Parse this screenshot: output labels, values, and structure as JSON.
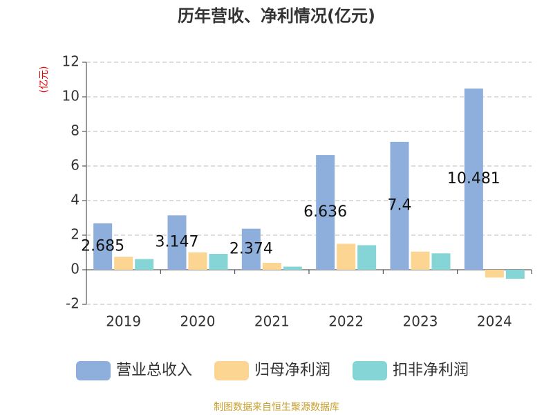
{
  "chart_data": {
    "type": "bar",
    "title": "历年营收、净利情况(亿元)",
    "y_label": "(亿元)",
    "footer": "制图数据来自恒生聚源数据库",
    "categories": [
      "2019",
      "2020",
      "2021",
      "2022",
      "2023",
      "2024"
    ],
    "series": [
      {
        "name": "营业总收入",
        "color": "#8eaedb",
        "values": [
          2.685,
          3.147,
          2.374,
          6.636,
          7.4,
          10.481
        ],
        "show_labels": true
      },
      {
        "name": "归母净利润",
        "color": "#fdd592",
        "values": [
          0.75,
          1.0,
          0.4,
          1.5,
          1.05,
          -0.45
        ]
      },
      {
        "name": "扣非净利润",
        "color": "#86d5d6",
        "values": [
          0.62,
          0.92,
          0.18,
          1.42,
          0.95,
          -0.52
        ]
      }
    ],
    "ylim": [
      -2,
      12
    ],
    "yticks": [
      -2,
      0,
      2,
      4,
      6,
      8,
      10,
      12
    ],
    "grid": true
  }
}
